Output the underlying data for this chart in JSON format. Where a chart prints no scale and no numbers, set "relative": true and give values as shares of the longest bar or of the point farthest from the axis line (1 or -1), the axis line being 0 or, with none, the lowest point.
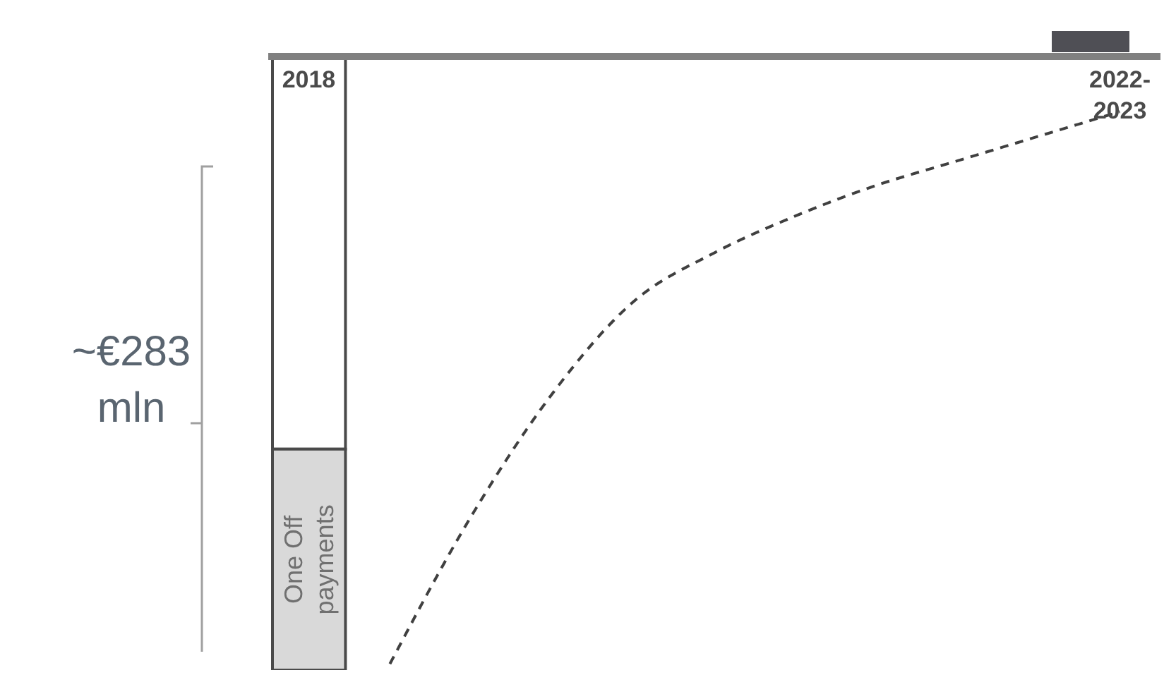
{
  "chart_data": {
    "type": "bar",
    "relative": true,
    "stacked": true,
    "categories": [
      "2018",
      null,
      null,
      null,
      null,
      null,
      null,
      null,
      null,
      null,
      "2022-2023"
    ],
    "series": [
      {
        "color": "#ffffff",
        "values": [
          -0.64,
          null,
          null,
          null,
          null,
          null,
          null,
          null,
          null,
          null,
          null
        ]
      },
      {
        "name": "One Off payments",
        "color": "#d9d9d9",
        "values": [
          -0.36,
          null,
          null,
          null,
          null,
          null,
          null,
          null,
          null,
          null,
          null
        ]
      },
      {
        "type": "line",
        "color": "#404040",
        "line_style": "dashed",
        "marker": "none",
        "values": [
          null,
          -0.99,
          -0.75,
          -0.55,
          -0.4,
          -0.32,
          -0.26,
          -0.21,
          -0.17,
          -0.13,
          -0.09
        ]
      }
    ],
    "annotations": [
      "~€283 mln"
    ]
  }
}
